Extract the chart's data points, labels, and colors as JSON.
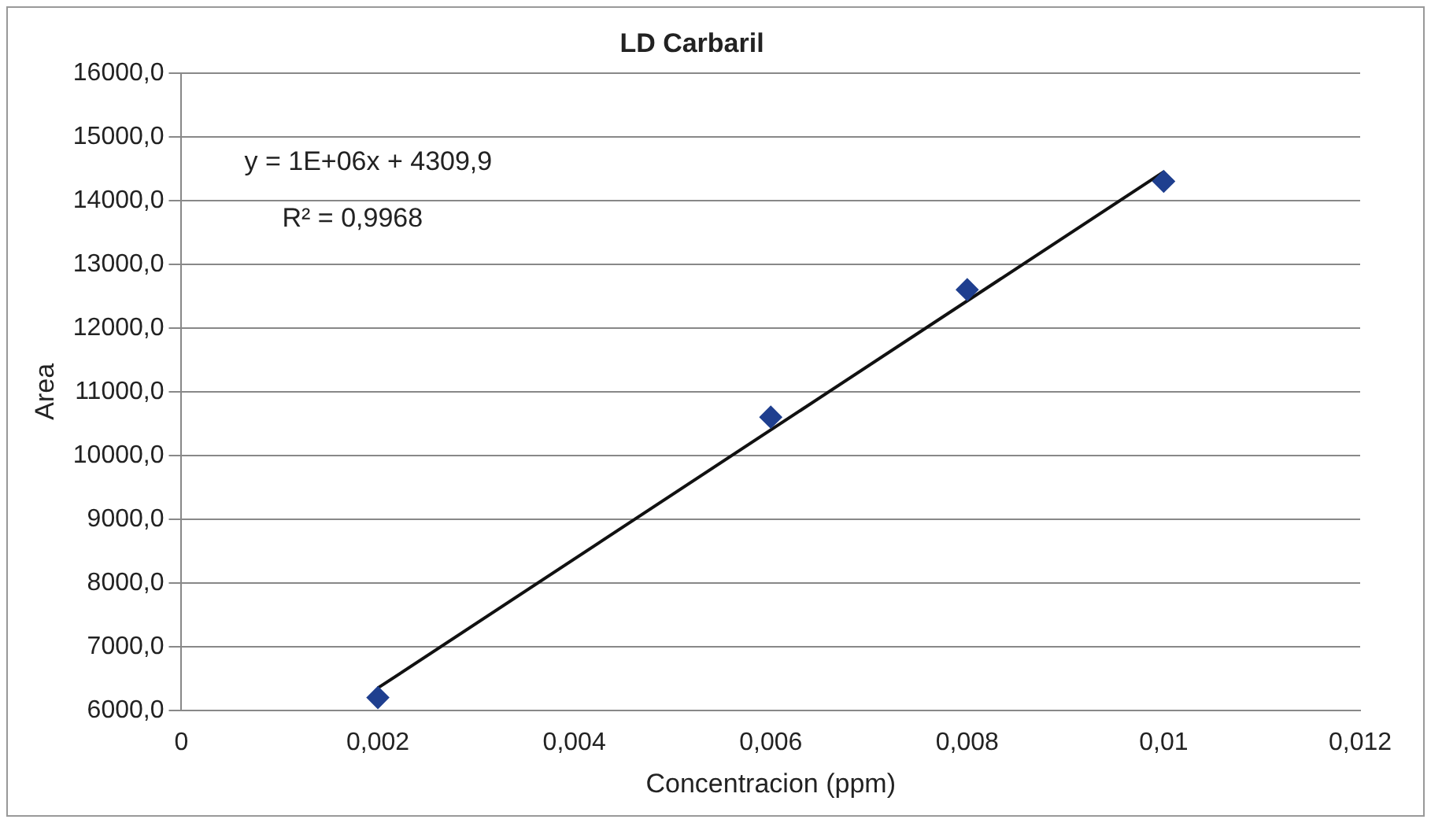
{
  "chart_data": {
    "type": "scatter",
    "title": "LD Carbaril",
    "xlabel": "Concentracion (ppm)",
    "ylabel": "Area",
    "x": [
      0.002,
      0.006,
      0.008,
      0.01
    ],
    "series": [
      {
        "color": "#1f3f8f",
        "values": [
          6200,
          10600,
          12600,
          14300
        ],
        "marker": "diamond"
      },
      {
        "type": "line",
        "color": "#111111",
        "x": [
          0.002,
          0.01
        ],
        "values": [
          6350,
          14450
        ],
        "marker": "none",
        "line_style": "solid"
      }
    ],
    "xlim": [
      0,
      0.012
    ],
    "xticks": [
      0,
      {
        "value": 0.002,
        "label": "0,002"
      },
      {
        "value": 0.004,
        "label": "0,004"
      },
      {
        "value": 0.006,
        "label": "0,006"
      },
      {
        "value": 0.008,
        "label": "0,008"
      },
      {
        "value": 0.01,
        "label": "0,01"
      },
      {
        "value": 0.012,
        "label": "0,012"
      }
    ],
    "ylim": [
      6000,
      16000
    ],
    "yticks": [
      {
        "value": 6000,
        "label": "6000,0"
      },
      {
        "value": 7000,
        "label": "7000,0"
      },
      {
        "value": 8000,
        "label": "8000,0"
      },
      {
        "value": 9000,
        "label": "9000,0"
      },
      {
        "value": 10000,
        "label": "10000,0"
      },
      {
        "value": 11000,
        "label": "11000,0"
      },
      {
        "value": 12000,
        "label": "12000,0"
      },
      {
        "value": 13000,
        "label": "13000,0"
      },
      {
        "value": 14000,
        "label": "14000,0"
      },
      {
        "value": 15000,
        "label": "15000,0"
      },
      {
        "value": 16000,
        "label": "16000,0"
      }
    ],
    "grid": "y",
    "legend": false,
    "annotations": [
      "y = 1E+06x + 4309,9",
      "R² = 0,9968"
    ]
  }
}
